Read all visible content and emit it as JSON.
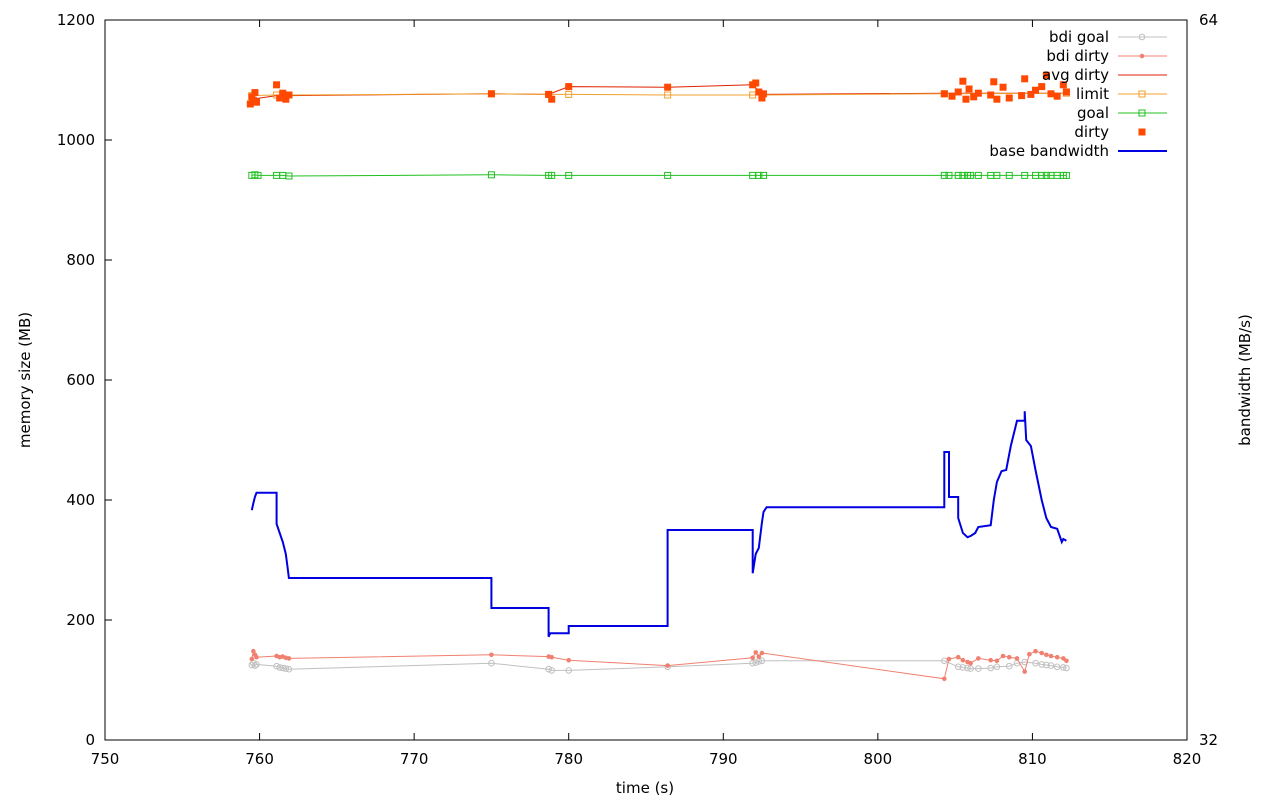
{
  "chart_data": {
    "type": "line",
    "title": "",
    "xlabel": "time (s)",
    "ylabel": "memory size (MB)",
    "y2label": "bandwidth (MB/s)",
    "xlim": [
      750,
      820
    ],
    "ylim": [
      0,
      1200
    ],
    "y2lim": [
      32,
      64
    ],
    "x_ticks": [
      "750",
      "760",
      "770",
      "780",
      "790",
      "800",
      "810",
      "820"
    ],
    "y_ticks": [
      "0",
      "200",
      "400",
      "600",
      "800",
      "1000",
      "1200"
    ],
    "y2_ticks": [
      "32",
      "64"
    ],
    "grid": false,
    "legend_position": "top-right",
    "series": [
      {
        "name": "bdi goal",
        "axis": "y",
        "color": "#c0c0c0",
        "style": "line-circle",
        "points": [
          [
            759.5,
            125
          ],
          [
            759.6,
            128
          ],
          [
            759.7,
            124
          ],
          [
            759.8,
            126
          ],
          [
            761.1,
            123
          ],
          [
            761.3,
            121
          ],
          [
            761.5,
            120
          ],
          [
            761.7,
            119
          ],
          [
            761.9,
            118
          ],
          [
            775.0,
            128
          ],
          [
            778.7,
            118
          ],
          [
            778.9,
            116
          ],
          [
            780.0,
            116
          ],
          [
            786.4,
            122
          ],
          [
            791.9,
            128
          ],
          [
            792.1,
            129
          ],
          [
            792.3,
            131
          ],
          [
            792.5,
            132
          ],
          [
            804.3,
            132
          ],
          [
            805.2,
            122
          ],
          [
            805.5,
            121
          ],
          [
            805.8,
            120
          ],
          [
            806.0,
            119
          ],
          [
            806.5,
            119
          ],
          [
            807.3,
            120
          ],
          [
            807.7,
            122
          ],
          [
            808.5,
            123
          ],
          [
            809.0,
            128
          ],
          [
            809.5,
            130
          ],
          [
            810.2,
            128
          ],
          [
            810.6,
            126
          ],
          [
            810.9,
            125
          ],
          [
            811.2,
            124
          ],
          [
            811.6,
            122
          ],
          [
            812.0,
            121
          ],
          [
            812.2,
            120
          ]
        ]
      },
      {
        "name": "bdi dirty",
        "axis": "y",
        "color": "#f08070",
        "style": "line-dot",
        "points": [
          [
            759.5,
            135
          ],
          [
            759.6,
            148
          ],
          [
            759.7,
            142
          ],
          [
            759.8,
            138
          ],
          [
            761.1,
            140
          ],
          [
            761.3,
            138
          ],
          [
            761.5,
            139
          ],
          [
            761.7,
            137
          ],
          [
            761.9,
            136
          ],
          [
            775.0,
            142
          ],
          [
            778.7,
            139
          ],
          [
            778.9,
            138
          ],
          [
            780.0,
            133
          ],
          [
            786.4,
            124
          ],
          [
            791.9,
            137
          ],
          [
            792.1,
            146
          ],
          [
            792.3,
            139
          ],
          [
            792.5,
            145
          ],
          [
            804.3,
            102
          ],
          [
            804.6,
            135
          ],
          [
            805.2,
            138
          ],
          [
            805.5,
            133
          ],
          [
            805.8,
            130
          ],
          [
            806.0,
            128
          ],
          [
            806.5,
            136
          ],
          [
            807.3,
            133
          ],
          [
            807.7,
            132
          ],
          [
            808.1,
            140
          ],
          [
            808.5,
            138
          ],
          [
            809.0,
            136
          ],
          [
            809.5,
            114
          ],
          [
            809.8,
            143
          ],
          [
            810.2,
            148
          ],
          [
            810.6,
            145
          ],
          [
            810.9,
            142
          ],
          [
            811.2,
            140
          ],
          [
            811.6,
            138
          ],
          [
            812.0,
            136
          ],
          [
            812.2,
            132
          ]
        ]
      },
      {
        "name": "avg dirty",
        "axis": "y",
        "color": "#e02000",
        "style": "line",
        "points": [
          [
            759.5,
            1068
          ],
          [
            761.1,
            1074
          ],
          [
            761.9,
            1074
          ],
          [
            775.0,
            1077
          ],
          [
            778.7,
            1076
          ],
          [
            780.0,
            1089
          ],
          [
            786.4,
            1088
          ],
          [
            791.9,
            1092
          ],
          [
            792.5,
            1076
          ],
          [
            804.3,
            1078
          ],
          [
            812.2,
            1078
          ]
        ]
      },
      {
        "name": "limit",
        "axis": "y",
        "color": "#f0a030",
        "style": "line-square",
        "points": [
          [
            759.5,
            1074
          ],
          [
            761.1,
            1075
          ],
          [
            761.9,
            1075
          ],
          [
            775.0,
            1077
          ],
          [
            778.7,
            1076
          ],
          [
            780.0,
            1076
          ],
          [
            786.4,
            1075
          ],
          [
            791.9,
            1075
          ],
          [
            792.5,
            1075
          ],
          [
            804.3,
            1077
          ],
          [
            812.2,
            1078
          ]
        ]
      },
      {
        "name": "goal",
        "axis": "y",
        "color": "#20c020",
        "style": "line-square",
        "points": [
          [
            759.5,
            941
          ],
          [
            759.7,
            942
          ],
          [
            759.9,
            941
          ],
          [
            761.1,
            941
          ],
          [
            761.5,
            941
          ],
          [
            761.9,
            940
          ],
          [
            775.0,
            942
          ],
          [
            778.7,
            941
          ],
          [
            778.9,
            941
          ],
          [
            780.0,
            941
          ],
          [
            786.4,
            941
          ],
          [
            791.9,
            941
          ],
          [
            792.3,
            941
          ],
          [
            792.6,
            941
          ],
          [
            804.3,
            941
          ],
          [
            804.6,
            941
          ],
          [
            805.2,
            941
          ],
          [
            805.5,
            941
          ],
          [
            805.8,
            941
          ],
          [
            806.0,
            941
          ],
          [
            806.5,
            941
          ],
          [
            807.3,
            941
          ],
          [
            807.7,
            941
          ],
          [
            808.5,
            941
          ],
          [
            809.5,
            941
          ],
          [
            810.2,
            941
          ],
          [
            810.6,
            941
          ],
          [
            810.9,
            941
          ],
          [
            811.2,
            941
          ],
          [
            811.6,
            941
          ],
          [
            812.0,
            941
          ],
          [
            812.2,
            941
          ]
        ]
      },
      {
        "name": "dirty",
        "axis": "y",
        "color": "#ff4800",
        "style": "square",
        "points": [
          [
            759.4,
            1060
          ],
          [
            759.5,
            1072
          ],
          [
            759.6,
            1066
          ],
          [
            759.7,
            1079
          ],
          [
            759.8,
            1063
          ],
          [
            761.1,
            1092
          ],
          [
            761.3,
            1070
          ],
          [
            761.5,
            1078
          ],
          [
            761.7,
            1068
          ],
          [
            761.9,
            1075
          ],
          [
            775.0,
            1077
          ],
          [
            778.7,
            1076
          ],
          [
            778.9,
            1068
          ],
          [
            780.0,
            1089
          ],
          [
            786.4,
            1088
          ],
          [
            791.9,
            1092
          ],
          [
            792.1,
            1095
          ],
          [
            792.3,
            1080
          ],
          [
            792.5,
            1070
          ],
          [
            792.6,
            1077
          ],
          [
            804.3,
            1077
          ],
          [
            804.8,
            1073
          ],
          [
            805.2,
            1080
          ],
          [
            805.5,
            1098
          ],
          [
            805.7,
            1068
          ],
          [
            805.9,
            1085
          ],
          [
            806.2,
            1072
          ],
          [
            806.5,
            1078
          ],
          [
            807.3,
            1075
          ],
          [
            807.5,
            1097
          ],
          [
            807.7,
            1068
          ],
          [
            808.1,
            1088
          ],
          [
            808.5,
            1070
          ],
          [
            809.3,
            1074
          ],
          [
            809.5,
            1102
          ],
          [
            809.9,
            1076
          ],
          [
            810.2,
            1083
          ],
          [
            810.6,
            1089
          ],
          [
            810.9,
            1108
          ],
          [
            811.2,
            1077
          ],
          [
            811.6,
            1073
          ],
          [
            812.0,
            1092
          ],
          [
            812.2,
            1080
          ]
        ]
      },
      {
        "name": "base bandwidth",
        "axis": "y",
        "color": "#0000e0",
        "style": "step",
        "points": [
          [
            759.5,
            383
          ],
          [
            759.6,
            395
          ],
          [
            759.7,
            405
          ],
          [
            759.8,
            412
          ],
          [
            761.1,
            412
          ],
          [
            761.1,
            360
          ],
          [
            761.3,
            345
          ],
          [
            761.5,
            330
          ],
          [
            761.7,
            310
          ],
          [
            761.8,
            290
          ],
          [
            761.9,
            270
          ],
          [
            775.0,
            270
          ],
          [
            775.0,
            220
          ],
          [
            778.7,
            220
          ],
          [
            778.7,
            172
          ],
          [
            778.8,
            178
          ],
          [
            780.0,
            178
          ],
          [
            780.0,
            190
          ],
          [
            786.4,
            190
          ],
          [
            786.4,
            350
          ],
          [
            791.9,
            350
          ],
          [
            791.9,
            278
          ],
          [
            792.1,
            310
          ],
          [
            792.3,
            320
          ],
          [
            792.5,
            362
          ],
          [
            792.6,
            380
          ],
          [
            792.8,
            388
          ],
          [
            804.3,
            388
          ],
          [
            804.3,
            480
          ],
          [
            804.6,
            480
          ],
          [
            804.6,
            405
          ],
          [
            805.2,
            405
          ],
          [
            805.2,
            370
          ],
          [
            805.5,
            345
          ],
          [
            805.8,
            338
          ],
          [
            806.0,
            340
          ],
          [
            806.3,
            345
          ],
          [
            806.5,
            355
          ],
          [
            807.3,
            358
          ],
          [
            807.5,
            400
          ],
          [
            807.7,
            430
          ],
          [
            808.0,
            448
          ],
          [
            808.3,
            450
          ],
          [
            808.6,
            490
          ],
          [
            809.0,
            532
          ],
          [
            809.5,
            532
          ],
          [
            809.5,
            548
          ],
          [
            809.6,
            500
          ],
          [
            809.9,
            490
          ],
          [
            810.2,
            450
          ],
          [
            810.6,
            400
          ],
          [
            810.9,
            370
          ],
          [
            811.2,
            355
          ],
          [
            811.6,
            352
          ],
          [
            811.9,
            330
          ],
          [
            812.0,
            335
          ],
          [
            812.2,
            332
          ]
        ]
      }
    ]
  }
}
